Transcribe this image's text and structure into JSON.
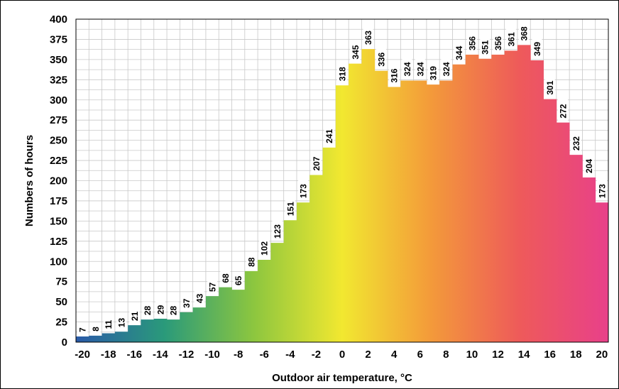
{
  "chart_data": {
    "type": "bar",
    "xlabel": "Outdoor air temperature, °C",
    "ylabel": "Numbers of hours",
    "x": [
      -20,
      -19,
      -18,
      -17,
      -16,
      -15,
      -14,
      -13,
      -12,
      -11,
      -10,
      -9,
      -8,
      -7,
      -6,
      -5,
      -4,
      -3,
      -2,
      -1,
      0,
      1,
      2,
      3,
      4,
      5,
      6,
      7,
      8,
      9,
      10,
      11,
      12,
      13,
      14,
      15,
      16,
      17,
      18,
      19,
      20
    ],
    "values": [
      7,
      8,
      11,
      13,
      21,
      28,
      29,
      28,
      37,
      43,
      57,
      68,
      65,
      88,
      102,
      123,
      151,
      173,
      207,
      241,
      318,
      345,
      363,
      336,
      316,
      324,
      324,
      319,
      324,
      344,
      356,
      351,
      356,
      361,
      368,
      349,
      301,
      272,
      232,
      204,
      173
    ],
    "x_tick_labels": [
      "-20",
      "-18",
      "-16",
      "-14",
      "-12",
      "-10",
      "-8",
      "-6",
      "-4",
      "-2",
      "0",
      "2",
      "4",
      "6",
      "8",
      "10",
      "12",
      "14",
      "16",
      "18",
      "20"
    ],
    "y_tick_labels": [
      "0",
      "25",
      "50",
      "75",
      "100",
      "125",
      "150",
      "175",
      "200",
      "225",
      "250",
      "275",
      "300",
      "325",
      "350",
      "375",
      "400"
    ],
    "ylim": [
      0,
      400
    ],
    "grid": true,
    "legend": "none",
    "colors": {
      "gradient_stops": [
        "#2a5aa8",
        "#2a9a7a",
        "#8cc63f",
        "#f2e830",
        "#f39a3a",
        "#ee5a5a",
        "#e8408a"
      ]
    }
  }
}
